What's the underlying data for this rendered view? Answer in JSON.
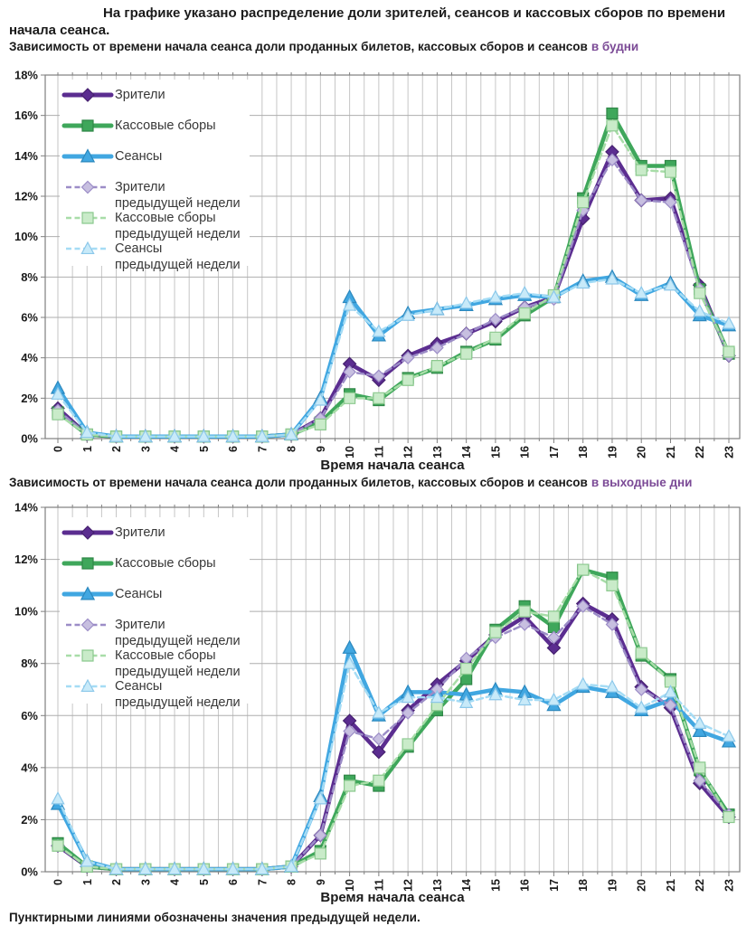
{
  "intro": {
    "line1": "На графике указано распределение доли зрителей, сеансов и кассовых сборов по времени",
    "line2": "начала сеанса."
  },
  "footnote": "Пунктирными линиями обозначены значения предыдущей недели.",
  "accent_color": "#7B4A96",
  "chart_data": [
    {
      "type": "line",
      "title": "Зависимость от времени начала сеанса доли проданных билетов, кассовых сборов и сеансов",
      "title_accent": "в будни",
      "xlabel": "Время начала сеанса",
      "ylabel": "",
      "ylim": [
        0,
        18
      ],
      "ystep": 2,
      "grid": true,
      "legend_position": "top-left",
      "x": [
        0,
        1,
        2,
        3,
        4,
        5,
        6,
        7,
        8,
        9,
        10,
        11,
        12,
        13,
        14,
        15,
        16,
        17,
        18,
        19,
        20,
        21,
        22,
        23
      ],
      "series": [
        {
          "name": "Зрители",
          "name2": "",
          "color": "#5B2D90",
          "marker_fill": "#5B2D90",
          "marker_edge": "#46216F",
          "marker": "diamond",
          "dashed": false,
          "values": [
            1.5,
            0.2,
            0.1,
            0.1,
            0.1,
            0.1,
            0.1,
            0.1,
            0.2,
            1.0,
            3.7,
            2.9,
            4.1,
            4.7,
            5.2,
            5.8,
            6.5,
            7.0,
            10.9,
            14.2,
            11.8,
            11.9,
            7.6,
            4.1
          ]
        },
        {
          "name": "Кассовые сборы",
          "name2": "",
          "color": "#3FA75B",
          "marker_fill": "#3FA75B",
          "marker_edge": "#2F8646",
          "marker": "square",
          "dashed": false,
          "values": [
            1.3,
            0.2,
            0.1,
            0.1,
            0.1,
            0.1,
            0.1,
            0.1,
            0.2,
            0.8,
            2.2,
            1.9,
            3.0,
            3.5,
            4.3,
            4.9,
            6.1,
            7.0,
            11.9,
            16.1,
            13.5,
            13.5,
            7.4,
            4.2
          ]
        },
        {
          "name": "Сеансы",
          "name2": "",
          "color": "#41A7E1",
          "marker_fill": "#41A7E1",
          "marker_edge": "#2B88BE",
          "marker": "triangle",
          "dashed": false,
          "values": [
            2.5,
            0.3,
            0.1,
            0.1,
            0.1,
            0.1,
            0.1,
            0.1,
            0.2,
            2.0,
            7.0,
            5.1,
            6.2,
            6.4,
            6.6,
            6.9,
            7.1,
            7.0,
            7.8,
            8.0,
            7.1,
            7.7,
            6.1,
            5.6
          ]
        },
        {
          "name": "Зрители",
          "name2": "предыдущей недели",
          "color": "#9C8DC7",
          "marker_fill": "#C7BFE0",
          "marker_edge": "#9C8DC7",
          "marker": "diamond",
          "dashed": true,
          "values": [
            1.4,
            0.2,
            0.1,
            0.1,
            0.1,
            0.1,
            0.1,
            0.1,
            0.2,
            1.0,
            3.3,
            3.1,
            4.0,
            4.5,
            5.2,
            5.9,
            6.5,
            6.9,
            11.3,
            13.8,
            11.8,
            11.7,
            7.4,
            4.1
          ]
        },
        {
          "name": "Кассовые сборы",
          "name2": "предыдущей недели",
          "color": "#A8DDA8",
          "marker_fill": "#C9EBC9",
          "marker_edge": "#8CC98F",
          "marker": "square",
          "dashed": true,
          "values": [
            1.2,
            0.2,
            0.1,
            0.1,
            0.1,
            0.1,
            0.1,
            0.1,
            0.2,
            0.7,
            2.0,
            2.0,
            2.9,
            3.6,
            4.2,
            5.0,
            6.2,
            7.1,
            11.7,
            15.5,
            13.3,
            13.2,
            7.2,
            4.3
          ]
        },
        {
          "name": "Сеансы",
          "name2": "предыдущей недели",
          "color": "#A5DCF5",
          "marker_fill": "#C8EAF9",
          "marker_edge": "#8CC8EA",
          "marker": "triangle",
          "dashed": true,
          "values": [
            2.2,
            0.3,
            0.1,
            0.1,
            0.1,
            0.1,
            0.1,
            0.1,
            0.2,
            1.9,
            6.6,
            5.3,
            6.1,
            6.4,
            6.7,
            7.0,
            7.2,
            7.0,
            7.7,
            7.9,
            7.2,
            7.6,
            6.3,
            5.7
          ]
        }
      ]
    },
    {
      "type": "line",
      "title": "Зависимость от времени начала сеанса доли проданных билетов, кассовых сборов и сеансов",
      "title_accent": "в выходные дни",
      "xlabel": "Время начала сеанса",
      "ylabel": "",
      "ylim": [
        0,
        14
      ],
      "ystep": 2,
      "grid": true,
      "legend_position": "top-left",
      "x": [
        0,
        1,
        2,
        3,
        4,
        5,
        6,
        7,
        8,
        9,
        10,
        11,
        12,
        13,
        14,
        15,
        16,
        17,
        18,
        19,
        20,
        21,
        22,
        23
      ],
      "series": [
        {
          "name": "Зрители",
          "name2": "",
          "color": "#5B2D90",
          "marker_fill": "#5B2D90",
          "marker_edge": "#46216F",
          "marker": "diamond",
          "dashed": false,
          "values": [
            1.0,
            0.2,
            0.1,
            0.1,
            0.1,
            0.1,
            0.1,
            0.1,
            0.2,
            1.4,
            5.8,
            4.6,
            6.2,
            7.2,
            8.1,
            9.1,
            9.8,
            8.6,
            10.3,
            9.7,
            7.1,
            6.3,
            3.4,
            2.1
          ]
        },
        {
          "name": "Кассовые сборы",
          "name2": "",
          "color": "#3FA75B",
          "marker_fill": "#3FA75B",
          "marker_edge": "#2F8646",
          "marker": "square",
          "dashed": false,
          "values": [
            1.1,
            0.2,
            0.1,
            0.1,
            0.1,
            0.1,
            0.1,
            0.1,
            0.2,
            0.8,
            3.5,
            3.3,
            4.8,
            6.2,
            7.4,
            9.3,
            10.2,
            9.4,
            11.6,
            11.3,
            8.3,
            7.4,
            3.9,
            2.2
          ]
        },
        {
          "name": "Сеансы",
          "name2": "",
          "color": "#41A7E1",
          "marker_fill": "#41A7E1",
          "marker_edge": "#2B88BE",
          "marker": "triangle",
          "dashed": false,
          "values": [
            2.6,
            0.4,
            0.1,
            0.1,
            0.1,
            0.1,
            0.1,
            0.1,
            0.2,
            2.9,
            8.6,
            6.0,
            6.9,
            6.9,
            6.8,
            7.0,
            6.9,
            6.4,
            7.1,
            6.9,
            6.2,
            6.6,
            5.4,
            5.0
          ]
        },
        {
          "name": "Зрители",
          "name2": "предыдущей недели",
          "color": "#9C8DC7",
          "marker_fill": "#C7BFE0",
          "marker_edge": "#9C8DC7",
          "marker": "diamond",
          "dashed": true,
          "values": [
            1.0,
            0.2,
            0.1,
            0.1,
            0.1,
            0.1,
            0.1,
            0.1,
            0.2,
            1.4,
            5.4,
            5.1,
            6.1,
            7.0,
            8.2,
            9.0,
            9.5,
            9.0,
            10.2,
            9.5,
            7.0,
            6.4,
            3.5,
            2.2
          ]
        },
        {
          "name": "Кассовые сборы",
          "name2": "предыдущей недели",
          "color": "#A8DDA8",
          "marker_fill": "#C9EBC9",
          "marker_edge": "#8CC98F",
          "marker": "square",
          "dashed": true,
          "values": [
            1.0,
            0.2,
            0.1,
            0.1,
            0.1,
            0.1,
            0.1,
            0.1,
            0.2,
            0.7,
            3.3,
            3.5,
            4.9,
            6.4,
            7.8,
            9.2,
            10.0,
            9.8,
            11.6,
            11.0,
            8.4,
            7.3,
            4.0,
            2.1
          ]
        },
        {
          "name": "Сеансы",
          "name2": "предыдущей недели",
          "color": "#A5DCF5",
          "marker_fill": "#C8EAF9",
          "marker_edge": "#8CC8EA",
          "marker": "triangle",
          "dashed": true,
          "values": [
            2.8,
            0.4,
            0.1,
            0.1,
            0.1,
            0.1,
            0.1,
            0.1,
            0.2,
            2.8,
            8.0,
            6.1,
            6.7,
            6.7,
            6.5,
            6.8,
            6.6,
            6.6,
            7.2,
            7.1,
            6.3,
            6.9,
            5.7,
            5.2
          ]
        }
      ]
    }
  ]
}
